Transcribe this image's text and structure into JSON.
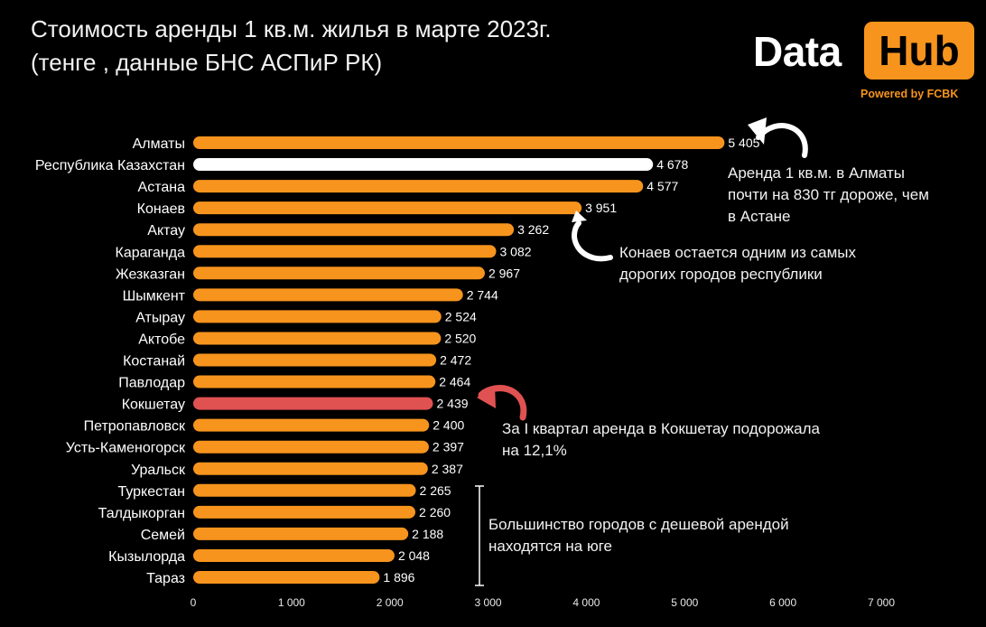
{
  "header": {
    "title_line1": "Стоимость аренды 1 кв.м. жилья в марте 2023г.",
    "title_line2": "(тенге , данные БНС АСПиР РК)"
  },
  "logo": {
    "word_data": "Data",
    "word_hub": "Hub",
    "powered": "Powered by FCBK",
    "accent_color": "#f7941d"
  },
  "annotations": {
    "almaty": "Аренда 1 кв.м. в Алматы\nпочти на 830 тг дороже, чем\nв Астане",
    "konaev": "Конаев остается одним из самых\nдорогих городов республики",
    "kokshetau": "За I квартал аренда в Кокшетау подорожала\nна 12,1%",
    "south": "Большинство городов с дешевой арендой\nнаходятся на юге"
  },
  "chart_data": {
    "type": "bar",
    "orientation": "horizontal",
    "categories": [
      "Алматы",
      "Республика Казахстан",
      "Астана",
      "Конаев",
      "Актау",
      "Караганда",
      "Жезказган",
      "Шымкент",
      "Атырау",
      "Актобе",
      "Костанай",
      "Павлодар",
      "Кокшетау",
      "Петропавловск",
      "Усть-Каменогорск",
      "Уральск",
      "Туркестан",
      "Талдыкорган",
      "Семей",
      "Кызылорда",
      "Тараз"
    ],
    "values": [
      5405,
      4678,
      4577,
      3951,
      3262,
      3082,
      2967,
      2744,
      2524,
      2520,
      2472,
      2464,
      2439,
      2400,
      2397,
      2387,
      2265,
      2260,
      2188,
      2048,
      1896
    ],
    "value_labels": [
      "5 405",
      "4 678",
      "4 577",
      "3 951",
      "3 262",
      "3 082",
      "2 967",
      "2 744",
      "2 524",
      "2 520",
      "2 472",
      "2 464",
      "2 439",
      "2 400",
      "2 397",
      "2 387",
      "2 265",
      "2 260",
      "2 188",
      "2 048",
      "1 896"
    ],
    "bar_colors": [
      "#f7941d",
      "#ffffff",
      "#f7941d",
      "#f7941d",
      "#f7941d",
      "#f7941d",
      "#f7941d",
      "#f7941d",
      "#f7941d",
      "#f7941d",
      "#f7941d",
      "#f7941d",
      "#e05252",
      "#f7941d",
      "#f7941d",
      "#f7941d",
      "#f7941d",
      "#f7941d",
      "#f7941d",
      "#f7941d",
      "#f7941d"
    ],
    "xlim": [
      0,
      7000
    ],
    "xticks": [
      0,
      1000,
      2000,
      3000,
      4000,
      5000,
      6000,
      7000
    ],
    "xtick_labels": [
      "0",
      "1 000",
      "2 000",
      "3 000",
      "4 000",
      "5 000",
      "6 000",
      "7 000"
    ],
    "grid": false,
    "background": "#000000"
  }
}
